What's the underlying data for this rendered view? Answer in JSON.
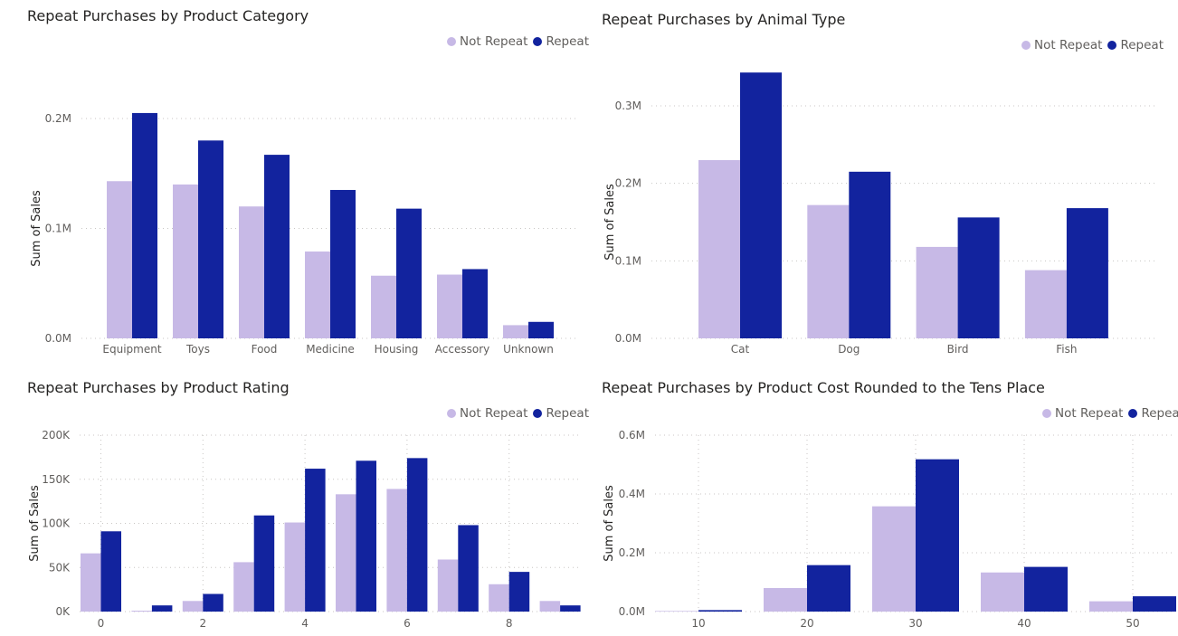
{
  "colors": {
    "not_repeat": "#c7b9e6",
    "repeat": "#12239e"
  },
  "legend_labels": [
    "Not Repeat",
    "Repeat"
  ],
  "chart_data": [
    {
      "type": "bar",
      "title": "Repeat Purchases by Product Category",
      "ylabel": "Sum of Sales",
      "xlabel": "",
      "categories": [
        "Equipment",
        "Toys",
        "Food",
        "Medicine",
        "Housing",
        "Accessory",
        "Unknown"
      ],
      "series": [
        {
          "name": "Not Repeat",
          "values": [
            143000,
            140000,
            120000,
            79000,
            57000,
            58000,
            12000
          ]
        },
        {
          "name": "Repeat",
          "values": [
            205000,
            180000,
            167000,
            135000,
            118000,
            63000,
            15000
          ]
        }
      ],
      "ylim": [
        0,
        200000
      ],
      "yticks": [
        0,
        100000,
        200000
      ],
      "ytick_labels": [
        "0.0M",
        "0.1M",
        "0.2M"
      ],
      "grid": true,
      "legend": "top-right"
    },
    {
      "type": "bar",
      "title": "Repeat Purchases by Animal Type",
      "ylabel": "Sum of Sales",
      "xlabel": "",
      "categories": [
        "Cat",
        "Dog",
        "Bird",
        "Fish"
      ],
      "series": [
        {
          "name": "Not Repeat",
          "values": [
            230000,
            172000,
            118000,
            88000
          ]
        },
        {
          "name": "Repeat",
          "values": [
            343000,
            215000,
            156000,
            168000
          ]
        }
      ],
      "ylim": [
        0,
        300000
      ],
      "yticks": [
        0,
        100000,
        200000,
        300000
      ],
      "ytick_labels": [
        "0.0M",
        "0.1M",
        "0.2M",
        "0.3M"
      ],
      "grid": true,
      "legend": "top-right"
    },
    {
      "type": "bar",
      "title": "Repeat Purchases by Product Rating",
      "ylabel": "Sum of Sales",
      "xlabel": "",
      "x": [
        0,
        1,
        2,
        3,
        4,
        5,
        6,
        7,
        8,
        9
      ],
      "xticks": [
        0,
        2,
        4,
        6,
        8
      ],
      "series": [
        {
          "name": "Not Repeat",
          "values": [
            66000,
            1000,
            12000,
            56000,
            101000,
            133000,
            139000,
            59000,
            31000,
            12000
          ]
        },
        {
          "name": "Repeat",
          "values": [
            91000,
            7000,
            20000,
            109000,
            162000,
            171000,
            174000,
            98000,
            45000,
            7000
          ]
        }
      ],
      "ylim": [
        0,
        200000
      ],
      "yticks": [
        0,
        50000,
        100000,
        150000,
        200000
      ],
      "ytick_labels": [
        "0K",
        "50K",
        "100K",
        "150K",
        "200K"
      ],
      "grid": true,
      "legend": "top-right"
    },
    {
      "type": "bar",
      "title": "Repeat Purchases by Product Cost Rounded to the Tens Place",
      "ylabel": "Sum of Sales",
      "xlabel": "",
      "x": [
        10,
        20,
        30,
        40,
        50
      ],
      "xticks": [
        10,
        20,
        30,
        40,
        50
      ],
      "series": [
        {
          "name": "Not Repeat",
          "values": [
            2000,
            80000,
            358000,
            133000,
            35000
          ]
        },
        {
          "name": "Repeat",
          "values": [
            5000,
            158000,
            518000,
            152000,
            52000
          ]
        }
      ],
      "ylim": [
        0,
        600000
      ],
      "yticks": [
        0,
        200000,
        400000,
        600000
      ],
      "ytick_labels": [
        "0.0M",
        "0.2M",
        "0.4M",
        "0.6M"
      ],
      "grid": true,
      "legend": "top-right"
    }
  ]
}
